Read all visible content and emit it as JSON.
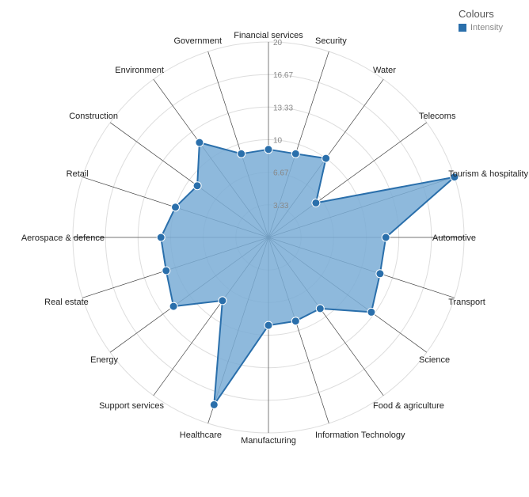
{
  "legend": {
    "title": "Colours",
    "item": "Intensity"
  },
  "chart_data": {
    "type": "radar",
    "title": "",
    "rmax": 20,
    "ticks": [
      "3.33",
      "6.67",
      "10",
      "13.33",
      "16.67",
      "20"
    ],
    "colors": {
      "line": "#2a6fab",
      "fill": "#7aadd6",
      "grid": "#dddddd",
      "spoke": "#444444"
    },
    "categories": [
      "Financial services",
      "Security",
      "Water",
      "Telecoms",
      "Tourism & hospitality",
      "Automotive",
      "Transport",
      "Science",
      "Food & agriculture",
      "Information Technology",
      "Manufacturing",
      "Healthcare",
      "Support services",
      "Energy",
      "Real estate",
      "Aerospace & defence",
      "Retail",
      "Construction",
      "Environment",
      "Government"
    ],
    "series": [
      {
        "name": "Intensity",
        "values": [
          9,
          9,
          10,
          6,
          20,
          12,
          12,
          13,
          9,
          9,
          9,
          18,
          8,
          12,
          11,
          11,
          10,
          9,
          12,
          9
        ]
      }
    ]
  }
}
